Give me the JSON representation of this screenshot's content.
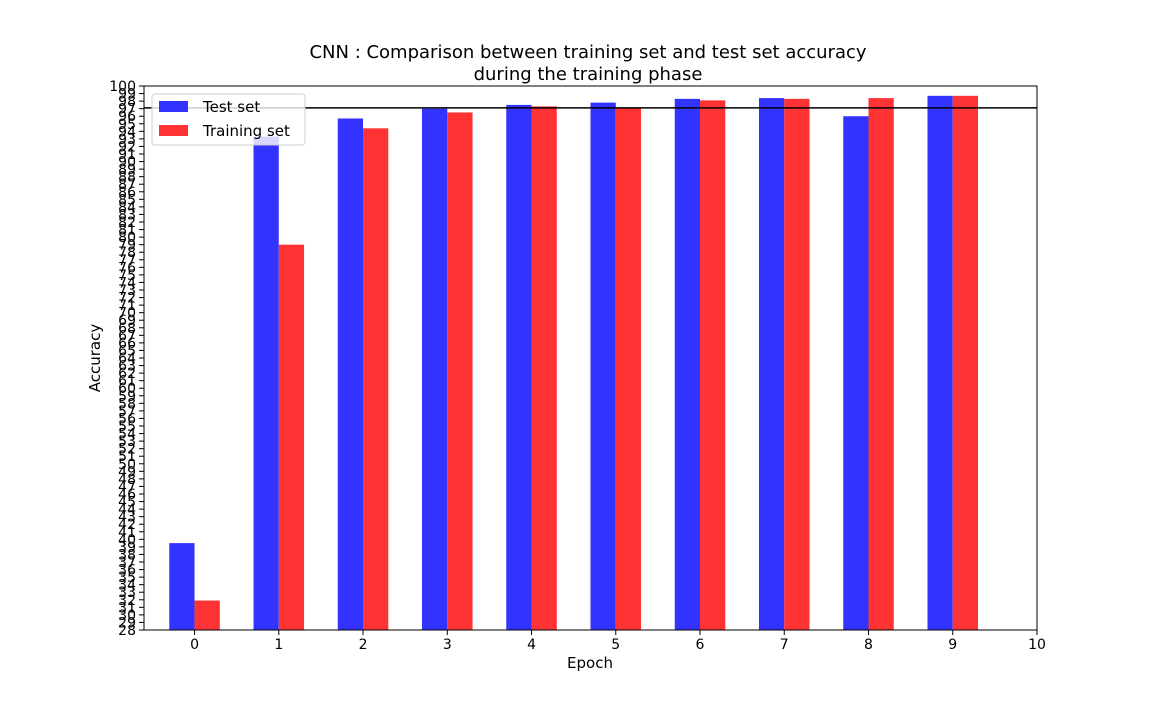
{
  "chart_data": {
    "type": "bar",
    "title_lines": [
      "CNN : Comparison between training set and test set accuracy",
      "during the training phase"
    ],
    "xlabel": "Epoch",
    "ylabel": "Accuracy",
    "x_ticks": [
      0,
      1,
      2,
      3,
      4,
      5,
      6,
      7,
      8,
      9,
      10
    ],
    "xlim": [
      -0.6,
      10
    ],
    "ylim": [
      28,
      100
    ],
    "y_ticks": [
      28,
      29,
      30,
      31,
      32,
      33,
      34,
      35,
      36,
      37,
      38,
      39,
      40,
      41,
      42,
      43,
      44,
      45,
      46,
      47,
      48,
      49,
      50,
      51,
      52,
      53,
      54,
      55,
      56,
      57,
      58,
      59,
      60,
      61,
      62,
      63,
      64,
      65,
      66,
      67,
      68,
      69,
      70,
      71,
      72,
      73,
      74,
      75,
      76,
      77,
      78,
      79,
      80,
      81,
      82,
      83,
      84,
      85,
      86,
      87,
      88,
      89,
      90,
      91,
      92,
      93,
      94,
      95,
      96,
      97,
      98,
      99,
      100
    ],
    "categories": [
      0,
      1,
      2,
      3,
      4,
      5,
      6,
      7,
      8,
      9
    ],
    "series": [
      {
        "name": "Test set",
        "color": "#3333ff",
        "values": [
          39.5,
          93.3,
          95.7,
          97.0,
          97.5,
          97.8,
          98.3,
          98.4,
          96.0,
          98.7
        ]
      },
      {
        "name": "Training set",
        "color": "#ff3333",
        "values": [
          31.9,
          79.0,
          94.4,
          96.5,
          97.3,
          97.1,
          98.1,
          98.3,
          98.4,
          98.7
        ]
      }
    ],
    "reference_line": {
      "y": 97.1,
      "color": "#000000"
    },
    "legend_position": "upper-left",
    "grid": false
  }
}
